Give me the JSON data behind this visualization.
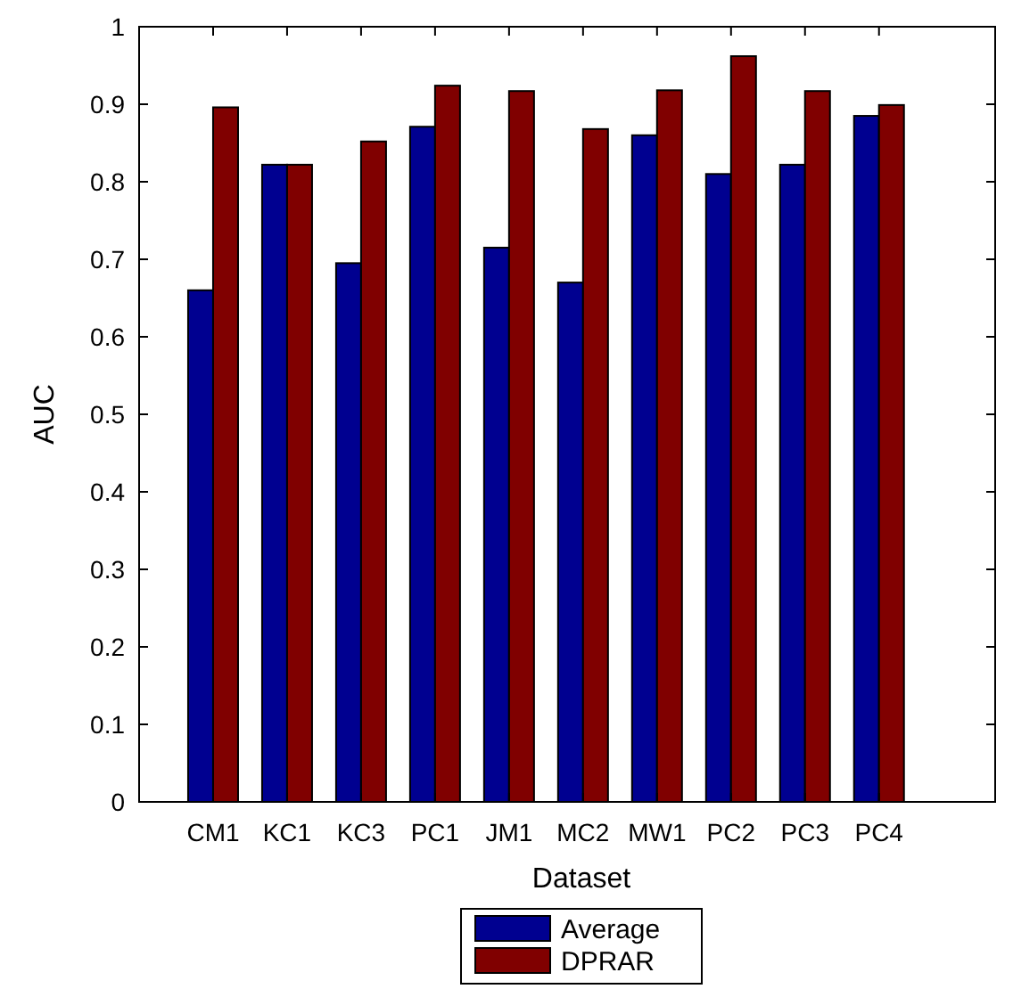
{
  "chart_data": {
    "type": "bar",
    "xlabel": "Dataset",
    "ylabel": "AUC",
    "categories": [
      "CM1",
      "KC1",
      "KC3",
      "PC1",
      "JM1",
      "MC2",
      "MW1",
      "PC2",
      "PC3",
      "PC4"
    ],
    "series": [
      {
        "name": "Average",
        "color": "#000090",
        "values": [
          0.66,
          0.822,
          0.695,
          0.871,
          0.715,
          0.67,
          0.86,
          0.81,
          0.822,
          0.885
        ]
      },
      {
        "name": "DPRAR",
        "color": "#800000",
        "values": [
          0.896,
          0.822,
          0.852,
          0.924,
          0.917,
          0.868,
          0.918,
          0.962,
          0.917,
          0.899
        ]
      }
    ],
    "ylim": [
      0,
      1
    ],
    "yticks": [
      0,
      0.1,
      0.2,
      0.3,
      0.4,
      0.5,
      0.6,
      0.7,
      0.8,
      0.9,
      1
    ],
    "grid": false,
    "legend": "bottom"
  }
}
